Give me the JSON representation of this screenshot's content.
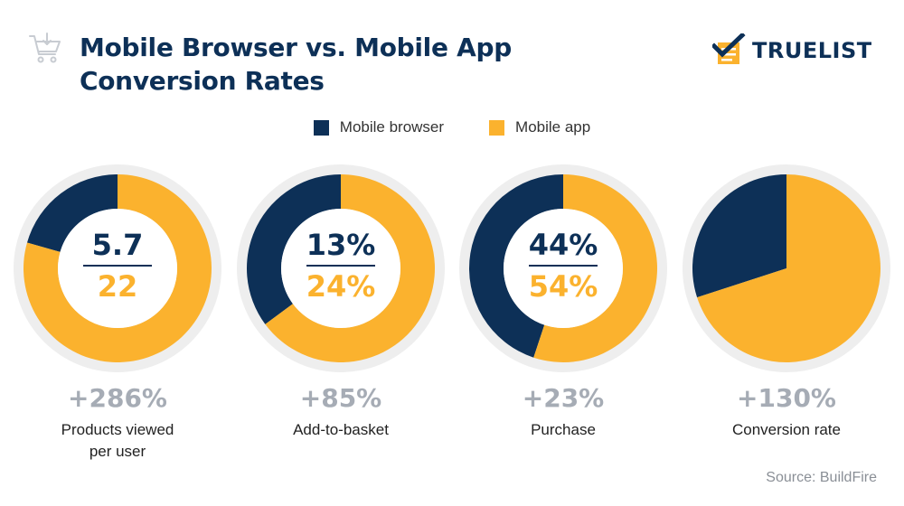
{
  "header": {
    "title_line1": "Mobile Browser vs. Mobile App",
    "title_line2": "Conversion Rates",
    "brand": "TRUELIST"
  },
  "colors": {
    "browser": "#0d3057",
    "app": "#fbb22e",
    "ring": "#eeeeee",
    "muted": "#a6acb5"
  },
  "legend": [
    {
      "label": "Mobile browser",
      "color": "#0d3057"
    },
    {
      "label": "Mobile app",
      "color": "#fbb22e"
    }
  ],
  "chart_data": [
    {
      "type": "donut",
      "series": [
        {
          "name": "Mobile browser",
          "value": 5.7
        },
        {
          "name": "Mobile app",
          "value": 22
        }
      ],
      "labels": {
        "browser": "5.7",
        "app": "22"
      },
      "increase": "+286%",
      "caption": [
        "Products viewed",
        "per user"
      ]
    },
    {
      "type": "donut",
      "series": [
        {
          "name": "Mobile browser",
          "value": 13
        },
        {
          "name": "Mobile app",
          "value": 24
        }
      ],
      "labels": {
        "browser": "13%",
        "app": "24%"
      },
      "increase": "+85%",
      "caption": [
        "Add-to-basket"
      ]
    },
    {
      "type": "donut",
      "series": [
        {
          "name": "Mobile browser",
          "value": 44
        },
        {
          "name": "Mobile app",
          "value": 54
        }
      ],
      "labels": {
        "browser": "44%",
        "app": "54%"
      },
      "increase": "+23%",
      "caption": [
        "Purchase"
      ]
    },
    {
      "type": "pie",
      "series": [
        {
          "name": "Mobile browser",
          "value": 30
        },
        {
          "name": "Mobile app",
          "value": 70
        }
      ],
      "labels": null,
      "increase": "+130%",
      "caption": [
        "Conversion rate"
      ]
    }
  ],
  "source": "Source: BuildFire"
}
